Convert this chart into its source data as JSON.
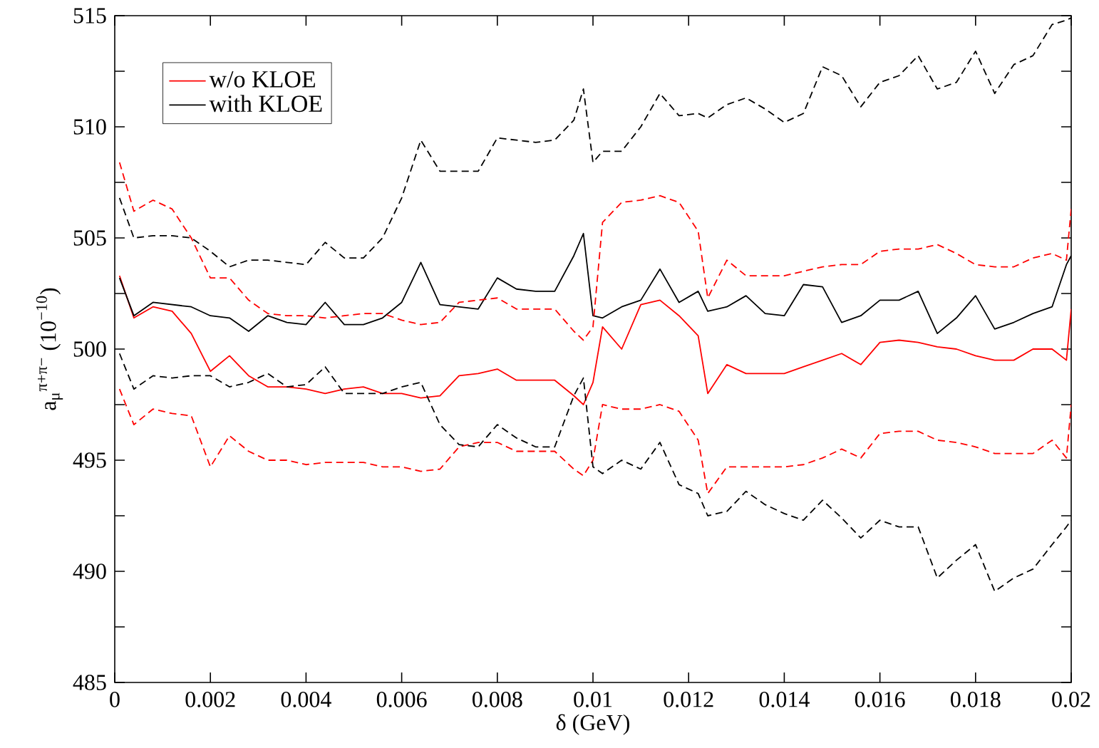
{
  "chart_data": {
    "type": "line",
    "xlabel": "δ (GeV)",
    "ylabel": "a$_{μ}$$^{π+π−}$ (10$^{−10}$)",
    "x": [
      0.0001,
      0.0004,
      0.0008,
      0.0012,
      0.0016,
      0.002,
      0.0024,
      0.0028,
      0.0032,
      0.0036,
      0.004,
      0.0044,
      0.0048,
      0.0052,
      0.0056,
      0.006,
      0.0064,
      0.0068,
      0.0072,
      0.0076,
      0.008,
      0.0084,
      0.0088,
      0.0092,
      0.0096,
      0.0098,
      0.01,
      0.0102,
      0.0106,
      0.011,
      0.0114,
      0.0118,
      0.0122,
      0.0124,
      0.0128,
      0.0132,
      0.0136,
      0.014,
      0.0144,
      0.0148,
      0.0152,
      0.0156,
      0.016,
      0.0164,
      0.0168,
      0.0172,
      0.0176,
      0.018,
      0.0184,
      0.0188,
      0.0192,
      0.0196,
      0.0199,
      0.02
    ],
    "series": [
      {
        "name": "w/o KLOE",
        "color": "#ff0000",
        "line_style": "solid",
        "values": [
          503.3,
          501.4,
          501.9,
          501.7,
          500.7,
          499.0,
          499.7,
          498.8,
          498.3,
          498.3,
          498.2,
          498.0,
          498.2,
          498.3,
          498.0,
          498.0,
          497.8,
          497.9,
          498.8,
          498.9,
          499.1,
          498.6,
          498.6,
          498.6,
          497.9,
          497.5,
          498.5,
          501.0,
          500.0,
          502.0,
          502.2,
          501.5,
          500.6,
          498.0,
          499.3,
          498.9,
          498.9,
          498.9,
          499.2,
          499.5,
          499.8,
          499.3,
          500.3,
          500.4,
          500.3,
          500.1,
          500.0,
          499.7,
          499.5,
          499.5,
          500.0,
          500.0,
          499.5,
          501.8
        ]
      },
      {
        "name": "with KLOE",
        "color": "#000000",
        "line_style": "solid",
        "values": [
          503.2,
          501.5,
          502.1,
          502.0,
          501.9,
          501.5,
          501.4,
          500.8,
          501.5,
          501.2,
          501.1,
          502.1,
          501.1,
          501.1,
          501.4,
          502.1,
          503.9,
          502.0,
          501.9,
          501.8,
          503.2,
          502.7,
          502.6,
          502.6,
          504.2,
          505.2,
          501.5,
          501.4,
          501.9,
          502.2,
          503.6,
          502.1,
          502.6,
          501.7,
          501.9,
          502.4,
          501.6,
          501.5,
          502.9,
          502.8,
          501.2,
          501.5,
          502.2,
          502.2,
          502.6,
          500.7,
          501.4,
          502.4,
          500.9,
          501.2,
          501.6,
          501.9,
          503.8,
          504.2
        ]
      },
      {
        "color": "#ff0000",
        "line_style": "dashed",
        "values": [
          508.4,
          506.2,
          506.7,
          506.3,
          505.0,
          503.2,
          503.2,
          502.2,
          501.6,
          501.5,
          501.5,
          501.4,
          501.5,
          501.6,
          501.6,
          501.3,
          501.1,
          501.2,
          502.1,
          502.2,
          502.3,
          501.8,
          501.8,
          501.8,
          500.8,
          500.4,
          501.0,
          505.7,
          506.6,
          506.7,
          506.9,
          506.6,
          505.3,
          502.3,
          504.0,
          503.3,
          503.3,
          503.3,
          503.5,
          503.7,
          503.8,
          503.8,
          504.4,
          504.5,
          504.5,
          504.7,
          504.3,
          503.8,
          503.7,
          503.7,
          504.1,
          504.3,
          504.0,
          506.3
        ]
      },
      {
        "color": "#ff0000",
        "line_style": "dashed",
        "values": [
          498.2,
          496.6,
          497.3,
          497.1,
          497.0,
          494.7,
          496.1,
          495.4,
          495.0,
          495.0,
          494.8,
          494.9,
          494.9,
          494.9,
          494.7,
          494.7,
          494.5,
          494.6,
          495.6,
          495.8,
          495.8,
          495.4,
          495.4,
          495.4,
          494.6,
          494.3,
          495.0,
          497.5,
          497.3,
          497.3,
          497.5,
          497.2,
          495.9,
          493.5,
          494.7,
          494.7,
          494.7,
          494.7,
          494.8,
          495.1,
          495.5,
          495.1,
          496.2,
          496.3,
          496.3,
          495.9,
          495.8,
          495.6,
          495.3,
          495.3,
          495.3,
          495.9,
          495.1,
          497.5
        ]
      },
      {
        "color": "#000000",
        "line_style": "dashed",
        "values": [
          506.8,
          505.0,
          505.1,
          505.1,
          505.0,
          504.4,
          503.7,
          504.0,
          504.0,
          503.9,
          503.8,
          504.8,
          504.1,
          504.1,
          505.0,
          506.8,
          509.4,
          508.0,
          508.0,
          508.0,
          509.5,
          509.4,
          509.3,
          509.4,
          510.3,
          511.7,
          508.4,
          508.9,
          508.9,
          510.0,
          511.5,
          510.5,
          510.6,
          510.4,
          511.0,
          511.3,
          510.8,
          510.2,
          510.6,
          512.7,
          512.3,
          510.9,
          512.0,
          512.3,
          513.2,
          511.7,
          512.0,
          513.4,
          511.5,
          512.8,
          513.2,
          514.6,
          514.8,
          514.9
        ]
      },
      {
        "color": "#000000",
        "line_style": "dashed",
        "values": [
          499.8,
          498.2,
          498.8,
          498.7,
          498.8,
          498.8,
          498.3,
          498.5,
          498.9,
          498.3,
          498.4,
          499.2,
          498.0,
          498.0,
          498.0,
          498.3,
          498.5,
          496.6,
          495.7,
          495.6,
          496.6,
          496.0,
          495.6,
          495.6,
          497.9,
          498.7,
          494.7,
          494.4,
          495.0,
          494.6,
          495.8,
          493.9,
          493.5,
          492.5,
          492.7,
          493.6,
          493.0,
          492.6,
          492.3,
          493.2,
          492.4,
          491.5,
          492.3,
          492.0,
          492.0,
          489.7,
          490.5,
          491.2,
          489.1,
          489.7,
          490.1,
          491.2,
          492.0,
          492.3
        ]
      }
    ],
    "xlim": [
      0,
      0.02
    ],
    "ylim": [
      485,
      515
    ],
    "xticks": [
      0,
      0.002,
      0.004,
      0.006,
      0.008,
      0.01,
      0.012,
      0.014,
      0.016,
      0.018,
      0.02
    ],
    "yticks": [
      485,
      {
        "value": 487.5,
        "label": null
      },
      490,
      {
        "value": 492.5,
        "label": null
      },
      495,
      {
        "value": 497.5,
        "label": null
      },
      500,
      {
        "value": 502.5,
        "label": null
      },
      505,
      {
        "value": 507.5,
        "label": null
      },
      510,
      {
        "value": 512.5,
        "label": null
      },
      515
    ],
    "legend": "top left",
    "marker": "none",
    "grid": false
  }
}
